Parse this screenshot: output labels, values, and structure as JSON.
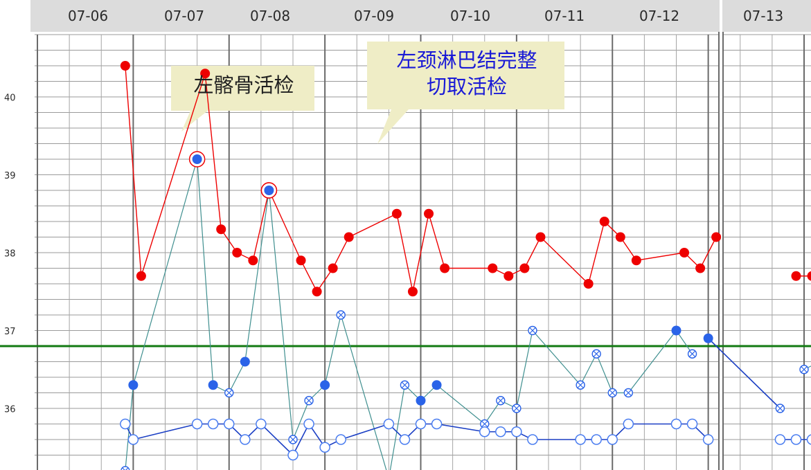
{
  "chart_data": {
    "type": "line",
    "title": "",
    "dates": [
      "07-06",
      "07-07",
      "07-08",
      "07-09",
      "07-10",
      "07-11",
      "07-12",
      "07-13"
    ],
    "y_ticks": [
      "40",
      "39",
      "38",
      "37",
      "36"
    ],
    "ylim": [
      35.3,
      40.9
    ],
    "reference_line": 36.9,
    "grid": true,
    "colors": {
      "temperature": "#ee0000",
      "marker_blue": "#2a63e8",
      "teal_line": "#3f8f8f",
      "navy_line": "#1b3fc4",
      "reference": "#127a12",
      "header_bg": "#dcdcdc",
      "callout_bg": "#efedc6"
    },
    "series": [
      {
        "color": "red",
        "segments": [
          [
            {
              "x": 2.75,
              "y": 40.5,
              "ring": false
            },
            {
              "x": 3.25,
              "y": 37.8,
              "ring": false
            },
            {
              "x": 5.25,
              "y": 40.4,
              "ring": false
            },
            {
              "x": 5.75,
              "y": 38.4,
              "ring": false
            },
            {
              "x": 6.25,
              "y": 38.1,
              "ring": false
            },
            {
              "x": 6.75,
              "y": 38.0,
              "ring": false
            },
            {
              "x": 7.25,
              "y": 38.9,
              "ring": true
            },
            {
              "x": 8.25,
              "y": 38.0,
              "ring": false
            },
            {
              "x": 8.75,
              "y": 37.6,
              "ring": false
            },
            {
              "x": 9.25,
              "y": 37.9,
              "ring": false
            },
            {
              "x": 9.75,
              "y": 38.3,
              "ring": false
            },
            {
              "x": 11.25,
              "y": 38.6,
              "ring": false
            },
            {
              "x": 11.75,
              "y": 37.6,
              "ring": false
            },
            {
              "x": 12.25,
              "y": 38.6,
              "ring": false
            },
            {
              "x": 12.75,
              "y": 37.9,
              "ring": false
            },
            {
              "x": 14.25,
              "y": 37.9,
              "ring": false
            },
            {
              "x": 14.75,
              "y": 37.8,
              "ring": false
            },
            {
              "x": 15.25,
              "y": 37.9,
              "ring": false
            },
            {
              "x": 15.75,
              "y": 38.3,
              "ring": false
            },
            {
              "x": 17.25,
              "y": 37.7,
              "ring": false
            },
            {
              "x": 17.75,
              "y": 38.5,
              "ring": false
            },
            {
              "x": 18.25,
              "y": 38.3,
              "ring": false
            },
            {
              "x": 18.75,
              "y": 38.0,
              "ring": false
            },
            {
              "x": 20.25,
              "y": 38.1,
              "ring": false
            },
            {
              "x": 20.75,
              "y": 37.9,
              "ring": false
            },
            {
              "x": 21.25,
              "y": 38.3,
              "ring": false
            }
          ],
          [
            {
              "x": 23.75,
              "y": 37.8,
              "ring": false
            },
            {
              "x": 24.25,
              "y": 37.8,
              "ring": false
            },
            {
              "x": 24.75,
              "y": 38.2,
              "ring": false
            }
          ]
        ]
      },
      {
        "color": "teal",
        "segments": [
          [
            {
              "x": 2.75,
              "y": 35.3,
              "m": "x"
            },
            {
              "x": 3.0,
              "y": 36.4,
              "m": "b"
            },
            {
              "x": 5.0,
              "y": 39.3,
              "m": "br"
            },
            {
              "x": 5.5,
              "y": 36.4,
              "m": "b"
            },
            {
              "x": 6.0,
              "y": 36.3,
              "m": "x"
            },
            {
              "x": 6.5,
              "y": 36.7,
              "m": "b"
            },
            {
              "x": 7.25,
              "y": 38.9,
              "m": "br"
            },
            {
              "x": 8.0,
              "y": 35.7,
              "m": "x"
            },
            {
              "x": 8.5,
              "y": 36.2,
              "m": "x"
            },
            {
              "x": 9.0,
              "y": 36.4,
              "m": "b"
            },
            {
              "x": 9.5,
              "y": 37.3,
              "m": "x"
            },
            {
              "x": 11.0,
              "y": 35.2,
              "m": "x"
            },
            {
              "x": 11.5,
              "y": 36.4,
              "m": "x"
            },
            {
              "x": 12.0,
              "y": 36.2,
              "m": "b"
            },
            {
              "x": 12.5,
              "y": 36.4,
              "m": "b"
            },
            {
              "x": 14.0,
              "y": 35.9,
              "m": "x"
            },
            {
              "x": 14.5,
              "y": 36.2,
              "m": "x"
            },
            {
              "x": 15.0,
              "y": 36.1,
              "m": "x"
            },
            {
              "x": 15.5,
              "y": 37.1,
              "m": "x"
            },
            {
              "x": 17.0,
              "y": 36.4,
              "m": "x"
            },
            {
              "x": 17.5,
              "y": 36.8,
              "m": "x"
            },
            {
              "x": 18.0,
              "y": 36.3,
              "m": "x"
            },
            {
              "x": 18.5,
              "y": 36.3,
              "m": "x"
            },
            {
              "x": 20.0,
              "y": 37.1,
              "m": "b"
            },
            {
              "x": 20.5,
              "y": 36.8,
              "m": "x"
            }
          ],
          [
            {
              "x": 24.0,
              "y": 36.6,
              "m": "x"
            },
            {
              "x": 24.5,
              "y": 36.7,
              "m": "b"
            }
          ]
        ]
      },
      {
        "color": "navy",
        "segments": [
          [
            {
              "x": 21.0,
              "y": 37.0,
              "m": "b"
            },
            {
              "x": 23.25,
              "y": 36.1,
              "m": "x"
            }
          ],
          [
            {
              "x": 2.75,
              "y": 35.9,
              "m": "o"
            },
            {
              "x": 3.0,
              "y": 35.7,
              "m": "o"
            },
            {
              "x": 5.0,
              "y": 35.9,
              "m": "o"
            },
            {
              "x": 5.5,
              "y": 35.9,
              "m": "o"
            },
            {
              "x": 6.0,
              "y": 35.9,
              "m": "o"
            },
            {
              "x": 6.5,
              "y": 35.7,
              "m": "o"
            },
            {
              "x": 7.0,
              "y": 35.9,
              "m": "o"
            },
            {
              "x": 8.0,
              "y": 35.5,
              "m": "o"
            },
            {
              "x": 8.5,
              "y": 35.9,
              "m": "o"
            },
            {
              "x": 9.0,
              "y": 35.6,
              "m": "o"
            },
            {
              "x": 9.5,
              "y": 35.7,
              "m": "o"
            },
            {
              "x": 11.0,
              "y": 35.9,
              "m": "o"
            },
            {
              "x": 11.5,
              "y": 35.7,
              "m": "o"
            },
            {
              "x": 12.0,
              "y": 35.9,
              "m": "o"
            },
            {
              "x": 12.5,
              "y": 35.9,
              "m": "o"
            },
            {
              "x": 14.0,
              "y": 35.8,
              "m": "o"
            },
            {
              "x": 14.5,
              "y": 35.8,
              "m": "o"
            },
            {
              "x": 15.0,
              "y": 35.8,
              "m": "o"
            },
            {
              "x": 15.5,
              "y": 35.7,
              "m": "o"
            },
            {
              "x": 17.0,
              "y": 35.7,
              "m": "o"
            },
            {
              "x": 17.5,
              "y": 35.7,
              "m": "o"
            },
            {
              "x": 18.0,
              "y": 35.7,
              "m": "o"
            },
            {
              "x": 18.5,
              "y": 35.9,
              "m": "o"
            },
            {
              "x": 20.0,
              "y": 35.9,
              "m": "o"
            },
            {
              "x": 20.5,
              "y": 35.9,
              "m": "o"
            },
            {
              "x": 21.0,
              "y": 35.7,
              "m": "o"
            }
          ],
          [
            {
              "x": 23.25,
              "y": 35.7,
              "m": "o"
            },
            {
              "x": 23.75,
              "y": 35.7,
              "m": "o"
            },
            {
              "x": 24.25,
              "y": 35.7,
              "m": "o"
            }
          ]
        ]
      }
    ],
    "annotations": [
      {
        "text": "左髂骨活检",
        "lines": [
          "左髂骨活检"
        ],
        "color": "#1f1f1f"
      },
      {
        "text": "左颈淋巴结完整切取活检",
        "lines": [
          "左颈淋巴结完整",
          "切取活检"
        ],
        "color": "#1a1ad6"
      }
    ]
  }
}
